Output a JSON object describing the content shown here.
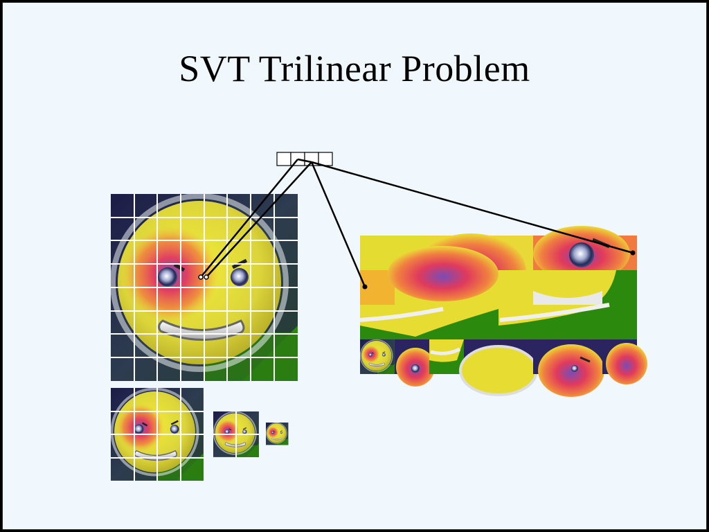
{
  "slide": {
    "title": "SVT Trilinear Problem"
  },
  "colors": {
    "background": "#f0f8fe",
    "face": "#e6dc32",
    "hot": "#f04646",
    "purple": "#7050b0",
    "green": "#2b8a0e",
    "dark": "#1a2040",
    "grid": "#ffffff",
    "link": "#000000"
  },
  "icons": [
    "smiley-face",
    "mip-pyramid",
    "texture-atlas",
    "lookup-cell"
  ]
}
